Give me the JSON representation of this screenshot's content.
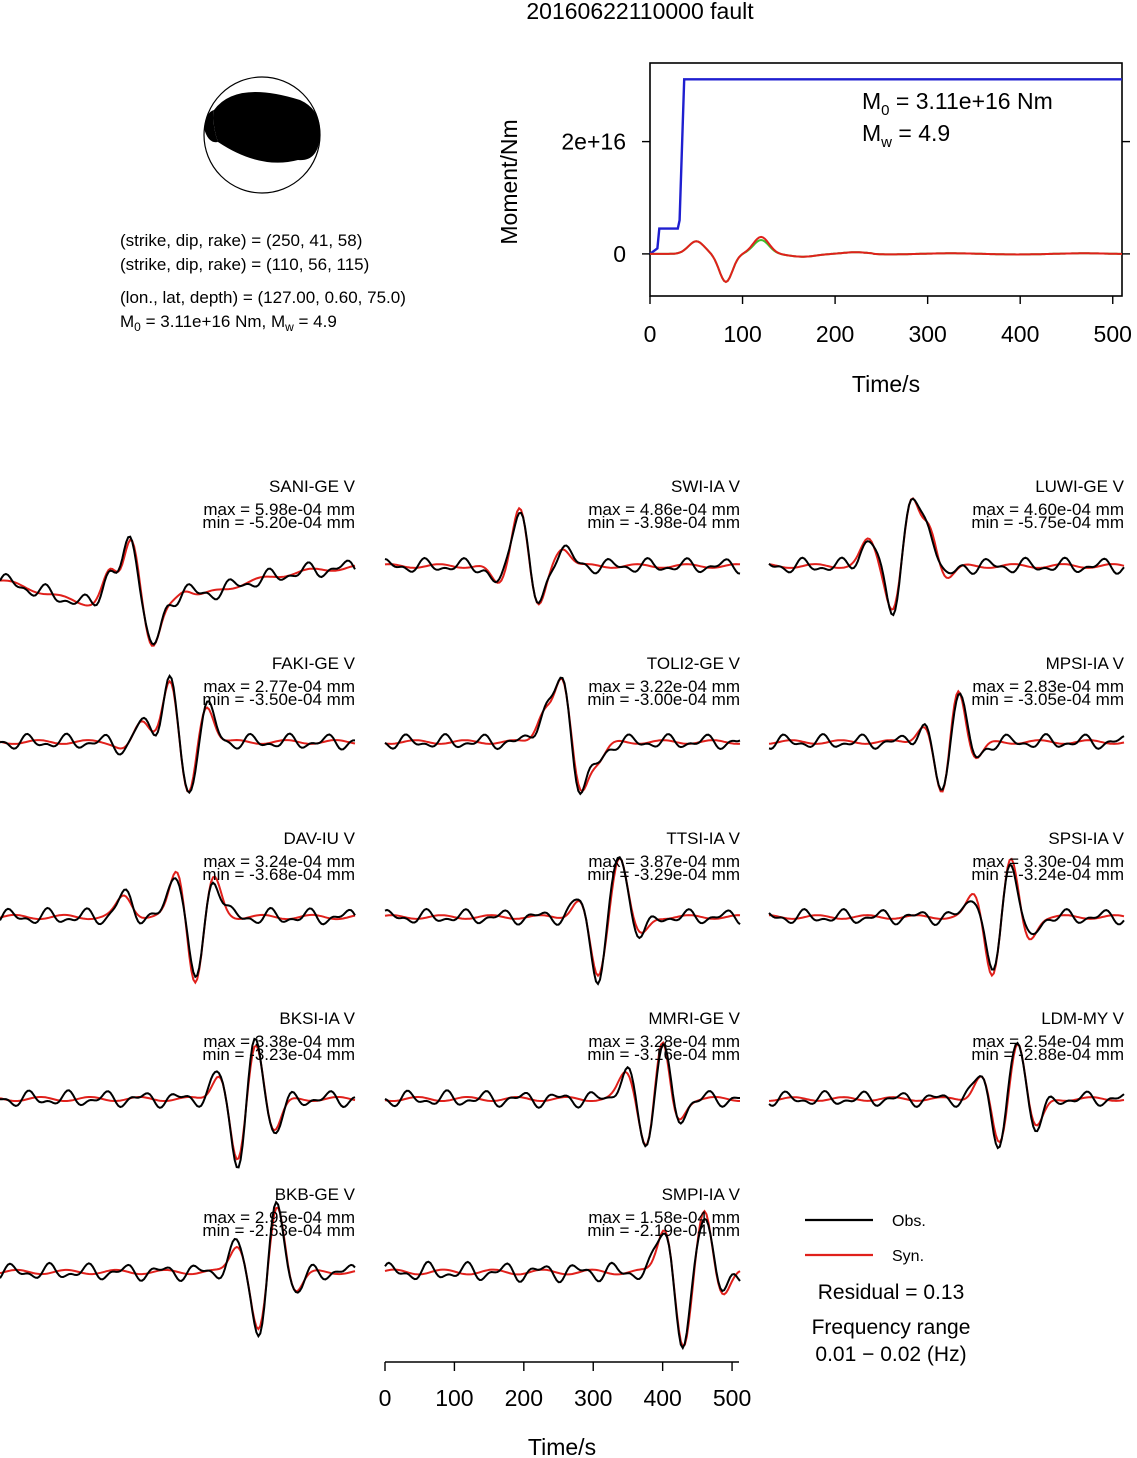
{
  "title": "20160622110000 fault",
  "mechanism": {
    "line1": "(strike, dip, rake) = (250, 41, 58)",
    "line2": "(strike, dip, rake) = (110, 56, 115)",
    "line3": "(lon., lat, depth) = (127.00, 0.60, 75.0)",
    "m0_text": "M",
    "m0_sub": "0",
    "m0_rest": " = 3.11e+16 Nm, M",
    "mw_sub": "w",
    "mw_rest": " = 4.9"
  },
  "moment_plot": {
    "ylabel": "Moment/Nm",
    "xlabel": "Time/s",
    "xticks": [
      "0",
      "100",
      "200",
      "300",
      "400",
      "500"
    ],
    "yticks": [
      "0",
      "2e+16"
    ],
    "m0_label": "M",
    "m0_sub": "0",
    "m0_value": " = 3.11e+16 Nm",
    "mw_label": "M",
    "mw_sub": "w",
    "mw_value": " = 4.9"
  },
  "stations": [
    {
      "name": "SANI-GE V",
      "max": "max = 5.98e-04 mm",
      "min": "min = -5.20e-04 mm"
    },
    {
      "name": "SWI-IA V",
      "max": "max = 4.86e-04 mm",
      "min": "min = -3.98e-04 mm"
    },
    {
      "name": "LUWI-GE V",
      "max": "max = 4.60e-04 mm",
      "min": "min = -5.75e-04 mm"
    },
    {
      "name": "FAKI-GE V",
      "max": "max = 2.77e-04 mm",
      "min": "min = -3.50e-04 mm"
    },
    {
      "name": "TOLI2-GE V",
      "max": "max = 3.22e-04 mm",
      "min": "min = -3.00e-04 mm"
    },
    {
      "name": "MPSI-IA V",
      "max": "max = 2.83e-04 mm",
      "min": "min = -3.05e-04 mm"
    },
    {
      "name": "DAV-IU V",
      "max": "max = 3.24e-04 mm",
      "min": "min = -3.68e-04 mm"
    },
    {
      "name": "TTSI-IA V",
      "max": "max = 3.87e-04 mm",
      "min": "min = -3.29e-04 mm"
    },
    {
      "name": "SPSI-IA V",
      "max": "max = 3.30e-04 mm",
      "min": "min = -3.24e-04 mm"
    },
    {
      "name": "BKSI-IA V",
      "max": "max = 3.38e-04 mm",
      "min": "min = -3.23e-04 mm"
    },
    {
      "name": "MMRI-GE V",
      "max": "max = 3.28e-04 mm",
      "min": "min = -3.16e-04 mm"
    },
    {
      "name": "LDM-MY V",
      "max": "max = 2.54e-04 mm",
      "min": "min = -2.88e-04 mm"
    },
    {
      "name": "BKB-GE V",
      "max": "max = 2.95e-04 mm",
      "min": "min = -2.63e-04 mm"
    },
    {
      "name": "SMPI-IA V",
      "max": "max = 1.58e-04 mm",
      "min": "min = -2.19e-04 mm"
    }
  ],
  "waveform_axis": {
    "xlabel": "Time/s",
    "xticks": [
      "0",
      "100",
      "200",
      "300",
      "400",
      "500"
    ]
  },
  "legend": {
    "obs": "Obs.",
    "syn": "Syn.",
    "residual": "Residual = 0.13",
    "freq_title": "Frequency range",
    "freq_value": "0.01 − 0.02 (Hz)"
  },
  "colors": {
    "obs": "#000000",
    "syn": "#e0201b",
    "moment": "#1f1fd0",
    "green": "#3bbf2a"
  },
  "chart_data": [
    {
      "type": "line",
      "title": "",
      "xlabel": "Time/s",
      "ylabel": "Moment/Nm",
      "xlim": [
        0,
        510
      ],
      "ylim": [
        -7500000000000000.0,
        3.4e+16
      ],
      "series": [
        {
          "name": "",
          "x": [
            0,
            8,
            10,
            30,
            32,
            37,
            40,
            510
          ],
          "values": [
            0,
            1000000000000000.0,
            4500000000000000.0,
            4500000000000000.0,
            6000000000000000.0,
            3.11e+16,
            3.11e+16,
            3.11e+16
          ]
        }
      ]
    },
    {
      "type": "line",
      "title": "",
      "xlabel": "Time/s",
      "xlim": [
        0,
        510
      ],
      "series": [
        {
          "name": "Obs.",
          "values": []
        },
        {
          "name": "Syn.",
          "values": []
        }
      ]
    }
  ]
}
